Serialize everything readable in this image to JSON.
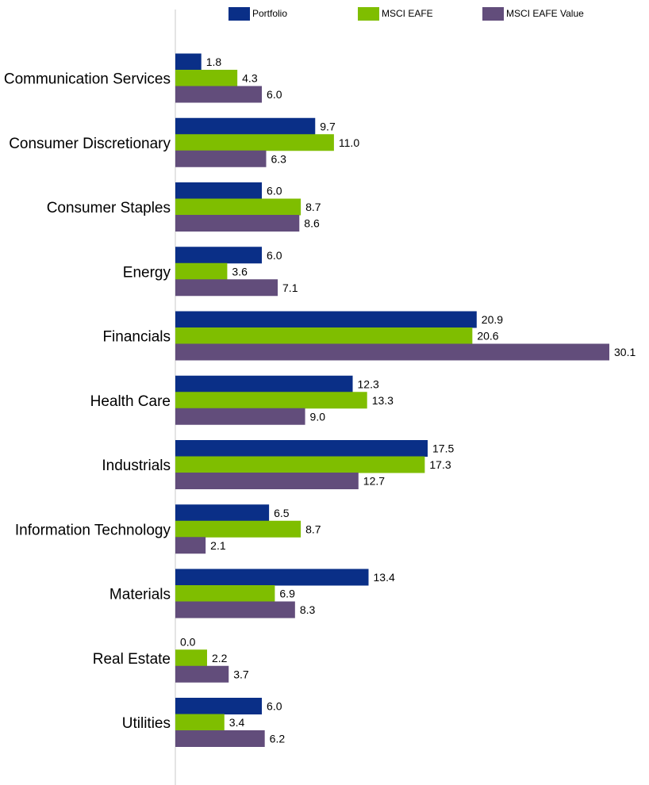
{
  "chart_data": {
    "type": "bar",
    "orientation": "horizontal",
    "categories": [
      "Communication Services",
      "Consumer Discretionary",
      "Consumer Staples",
      "Energy",
      "Financials",
      "Health Care",
      "Industrials",
      "Information Technology",
      "Materials",
      "Real Estate",
      "Utilities"
    ],
    "series": [
      {
        "name": "Portfolio",
        "color": "#0a2f87",
        "values": [
          1.8,
          9.7,
          6.0,
          6.0,
          20.9,
          12.3,
          17.5,
          6.5,
          13.4,
          0.0,
          6.0
        ]
      },
      {
        "name": "MSCI EAFE",
        "color": "#7fbe00",
        "values": [
          4.3,
          11.0,
          8.7,
          3.6,
          20.6,
          13.3,
          17.3,
          8.7,
          6.9,
          2.2,
          3.4
        ]
      },
      {
        "name": "MSCI EAFE Value",
        "color": "#624d7b",
        "values": [
          6.0,
          6.3,
          8.6,
          7.1,
          30.1,
          9.0,
          12.7,
          2.1,
          8.3,
          3.7,
          6.2
        ]
      }
    ],
    "legend_position": "top",
    "axis_color": "#c8c8c8",
    "xlim": [
      0,
      30.1
    ],
    "grid": false
  }
}
